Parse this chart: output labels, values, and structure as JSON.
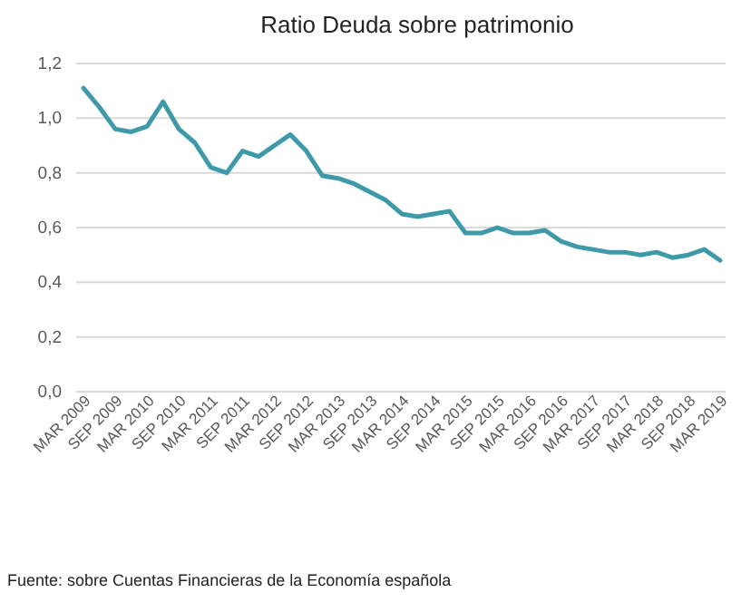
{
  "chart_data": {
    "type": "line",
    "title": "Ratio Deuda sobre patrimonio",
    "categories": [
      "MAR 2009",
      null,
      "SEP 2009",
      null,
      "MAR 2010",
      null,
      "SEP 2010",
      null,
      "MAR 2011",
      null,
      "SEP 2011",
      null,
      "MAR 2012",
      null,
      "SEP 2012",
      null,
      "MAR 2013",
      null,
      "SEP 2013",
      null,
      "MAR 2014",
      null,
      "SEP 2014",
      null,
      "MAR 2015",
      null,
      "SEP 2015",
      null,
      "MAR 2016",
      null,
      "SEP 2016",
      null,
      "MAR 2017",
      null,
      "SEP 2017",
      null,
      "MAR 2018",
      null,
      "SEP 2018",
      null,
      "MAR 2019"
    ],
    "series": [
      {
        "color": "#3e9aa9",
        "values": [
          1.11,
          1.04,
          0.96,
          0.95,
          0.97,
          1.06,
          0.96,
          0.91,
          0.82,
          0.8,
          0.88,
          0.86,
          0.9,
          0.94,
          0.88,
          0.79,
          0.78,
          0.76,
          0.73,
          0.7,
          0.65,
          0.64,
          0.65,
          0.66,
          0.58,
          0.58,
          0.6,
          0.58,
          0.58,
          0.59,
          0.55,
          0.53,
          0.52,
          0.51,
          0.51,
          0.5,
          0.51,
          0.49,
          0.5,
          0.52,
          0.48
        ]
      }
    ],
    "ylim": [
      0,
      1.2
    ],
    "yticks": [
      {
        "value": 0,
        "label": "0,0"
      },
      {
        "value": 0.2,
        "label": "0,2"
      },
      {
        "value": 0.4,
        "label": "0,4"
      },
      {
        "value": 0.6,
        "label": "0,6"
      },
      {
        "value": 0.8,
        "label": "0,8"
      },
      {
        "value": 1,
        "label": "1,0"
      },
      {
        "value": 1.2,
        "label": "1,2"
      }
    ],
    "grid": "y",
    "marker": "none",
    "line_style": "solid",
    "annotations": [
      "Fuente: sobre Cuentas Financieras de la Economía española"
    ]
  }
}
